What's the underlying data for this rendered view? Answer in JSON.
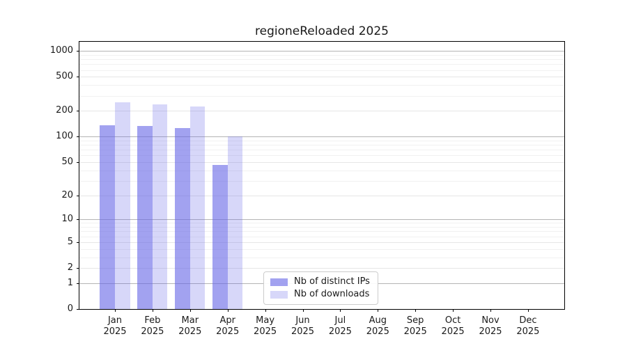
{
  "figure": {
    "title": "regioneReloaded 2025"
  },
  "colors": {
    "background": "#ffffff",
    "spine": "#000000",
    "grid_minor": "#f1f1f1",
    "grid_major": "#e6e6e6",
    "grid_decade": "#b4b4b4",
    "text": "#1a1a1a",
    "legend_border": "#cccccc",
    "bar_ips": "rgba(100,100,230,0.60)",
    "bar_downloads": "rgba(100,100,230,0.26)"
  },
  "chart_data": {
    "type": "bar",
    "title": "regioneReloaded 2025",
    "x_categories": [
      "Jan",
      "Feb",
      "Mar",
      "Apr",
      "May",
      "Jun",
      "Jul",
      "Aug",
      "Sep",
      "Oct",
      "Nov",
      "Dec"
    ],
    "x_year": "2025",
    "series": [
      {
        "name": "Nb of distinct IPs",
        "color": "rgba(100,100,230,0.60)",
        "values": [
          136,
          134,
          126,
          46,
          0,
          0,
          0,
          0,
          0,
          0,
          0,
          0
        ]
      },
      {
        "name": "Nb of downloads",
        "color": "rgba(100,100,230,0.26)",
        "values": [
          252,
          239,
          226,
          100,
          0,
          0,
          0,
          0,
          0,
          0,
          0,
          0
        ]
      }
    ],
    "y_scale": "log1p",
    "ylim": [
      0,
      1280
    ],
    "y_ticks": [
      0,
      1,
      2,
      5,
      10,
      20,
      50,
      100,
      200,
      500,
      1000
    ],
    "y_minor_ticks": [
      3,
      4,
      6,
      7,
      8,
      9,
      30,
      40,
      60,
      70,
      80,
      90,
      300,
      400,
      600,
      700,
      800,
      900
    ],
    "y_decade_lines": [
      1,
      10,
      100,
      1000
    ],
    "grid": "horizontal",
    "legend_position": "lower center"
  }
}
